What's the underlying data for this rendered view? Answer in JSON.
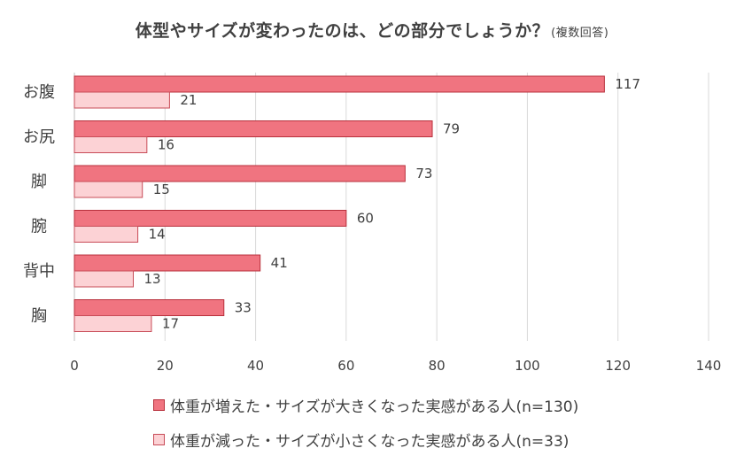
{
  "chart_data": {
    "type": "bar",
    "orientation": "horizontal",
    "title": "体型やサイズが変わったのは、どの部分でしょうか？",
    "title_note": "(複数回答)",
    "categories": [
      "お腹",
      "お尻",
      "脚",
      "腕",
      "背中",
      "胸"
    ],
    "series": [
      {
        "name": "体重が増えた・サイズが大きくなった実感がある人(n=130)",
        "values": [
          117,
          79,
          73,
          60,
          41,
          33
        ],
        "color": "#f07480",
        "border": "#b8303c"
      },
      {
        "name": "体重が減った・サイズが小さくなった実感がある人(n=33)",
        "values": [
          21,
          16,
          15,
          14,
          13,
          17
        ],
        "color": "#fcd2d5",
        "border": "#c84c58"
      }
    ],
    "xlim": [
      0,
      140
    ],
    "xticks": [
      0,
      20,
      40,
      60,
      80,
      100,
      120,
      140
    ],
    "grid": true,
    "legend_position": "bottom"
  }
}
